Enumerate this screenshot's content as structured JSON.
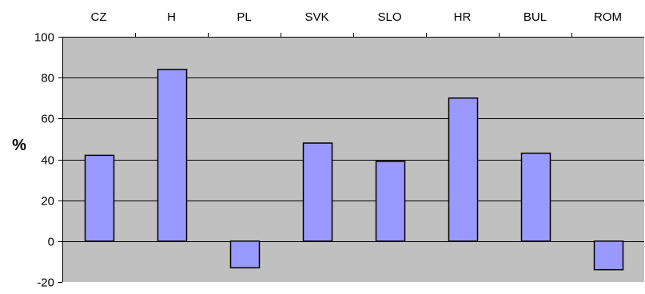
{
  "chart_data": {
    "type": "bar",
    "categories": [
      "CZ",
      "H",
      "PL",
      "SVK",
      "SLO",
      "HR",
      "BUL",
      "ROM"
    ],
    "values": [
      42,
      84,
      -13,
      48,
      39,
      70,
      43,
      -14
    ],
    "title": "",
    "xlabel": "",
    "ylabel": "%",
    "ylim": [
      -20,
      100
    ],
    "yticks": [
      100,
      80,
      60,
      40,
      20,
      0,
      -20
    ],
    "grid": true,
    "category_labels_position": "top",
    "colors": {
      "plot_background": "#c0c0c0",
      "bar_fill": "#9999ff",
      "bar_stroke": "#000000",
      "gridline": "#000000"
    }
  }
}
